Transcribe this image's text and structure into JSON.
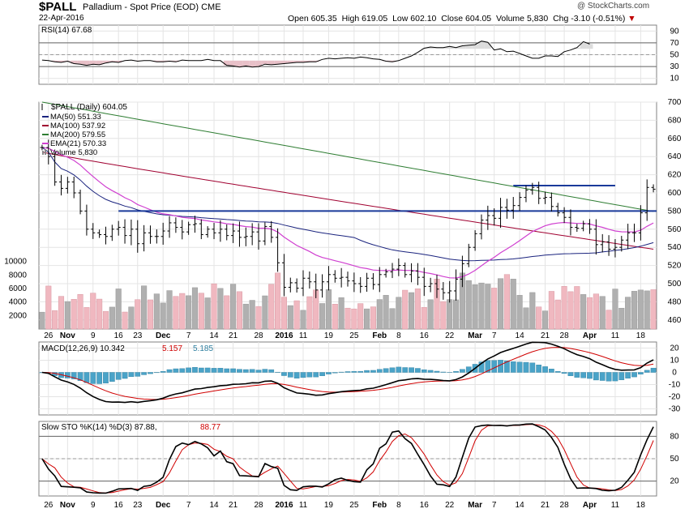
{
  "header": {
    "symbol": "$PALL",
    "name": "Palladium - Spot Price (EOD)",
    "exchange": "CME",
    "date": "22-Apr-2016",
    "watermark": "@ StockCharts.com",
    "open_label": "Open",
    "open": "605.35",
    "high_label": "High",
    "high": "619.05",
    "low_label": "Low",
    "low": "602.10",
    "close_label": "Close",
    "close": "604.05",
    "volume_label": "Volume",
    "volume": "5,830",
    "chg_label": "Chg",
    "chg": "-3.10 (-0.51%)",
    "chg_marker": "▼"
  },
  "colors": {
    "ma50": "#1a237e",
    "ma100": "#a00030",
    "ma200": "#2e7d32",
    "ema21": "#d040d0",
    "bar": "#000000",
    "vol_up": "#b0b0b0",
    "vol_down": "#f0b8c0",
    "macd_line": "#000000",
    "macd_signal": "#d00000",
    "macd_hist": "#4aa3c8",
    "sto_k": "#000000",
    "sto_d": "#d00000",
    "hline": "#1a3a9a"
  },
  "chart_data": [
    {
      "type": "line",
      "panel": "rsi",
      "title": "RSI(14)",
      "value_label": "67.68",
      "ylim": [
        0,
        100
      ],
      "yticks": [
        10,
        30,
        50,
        70,
        90
      ],
      "series": [
        {
          "name": "RSI(14)",
          "values": [
            41,
            40,
            38,
            37,
            39,
            35,
            34,
            32,
            34,
            33,
            36,
            38,
            37,
            40,
            41,
            39,
            40,
            40,
            38,
            38,
            39,
            38,
            41,
            40,
            40,
            40,
            42,
            40,
            40,
            32,
            31,
            29,
            31,
            29,
            30,
            34,
            33,
            34,
            35,
            36,
            37,
            37,
            38,
            38,
            42,
            44,
            43,
            44,
            45,
            44,
            46,
            45,
            43,
            42,
            39,
            38,
            40,
            44,
            48,
            54,
            61,
            63,
            62,
            62,
            64,
            62,
            65,
            66,
            67,
            73,
            71,
            58,
            60,
            55,
            56,
            52,
            48,
            44,
            44,
            48,
            48,
            47,
            55,
            58,
            62,
            72,
            68
          ]
        }
      ]
    },
    {
      "type": "ohlc",
      "panel": "price",
      "title": "$PALL (Daily)",
      "value_label": "604.05",
      "ylim": [
        450,
        700
      ],
      "yticks": [
        460,
        480,
        500,
        520,
        540,
        560,
        580,
        600,
        620,
        640,
        660,
        680,
        700
      ],
      "x_tick_labels": [
        "26",
        "Nov",
        "9",
        "16",
        "23",
        "Dec",
        "7",
        "14",
        "21",
        "28",
        "2016",
        "11",
        "19",
        "25",
        "Feb",
        "8",
        "16",
        "22",
        "Mar",
        "7",
        "14",
        "21",
        "28",
        "Apr",
        "11",
        "18"
      ],
      "close": [
        650,
        640,
        612,
        605,
        612,
        600,
        580,
        560,
        556,
        554,
        552,
        560,
        562,
        553,
        560,
        544,
        556,
        552,
        552,
        558,
        567,
        562,
        557,
        565,
        566,
        554,
        560,
        556,
        560,
        553,
        558,
        551,
        552,
        557,
        547,
        563,
        551,
        523,
        496,
        501,
        495,
        506,
        502,
        493,
        502,
        510,
        506,
        507,
        503,
        500,
        497,
        506,
        499,
        510,
        513,
        516,
        520,
        510,
        514,
        507,
        497,
        500,
        494,
        490,
        492,
        505,
        522,
        540,
        555,
        570,
        575,
        572,
        584,
        581,
        586,
        595,
        603,
        606,
        594,
        595,
        585,
        578,
        573,
        562,
        561,
        566,
        560,
        543,
        546,
        538,
        540,
        548,
        556,
        556,
        578,
        606,
        604.05
      ],
      "horizontal_levels": [
        580,
        608
      ],
      "series": [
        {
          "name": "MA(50)",
          "value_label": "551.33"
        },
        {
          "name": "MA(100)",
          "value_label": "537.92"
        },
        {
          "name": "MA(200)",
          "value_label": "579.55"
        },
        {
          "name": "EMA(21)",
          "value_label": "570.33"
        }
      ],
      "volume": {
        "name": "Volume",
        "value_label": "5,830",
        "ylim": [
          0,
          12000
        ],
        "yticks": [
          2000,
          4000,
          6000,
          8000,
          10000
        ]
      }
    },
    {
      "type": "line",
      "panel": "macd",
      "title": "MACD(12,26,9)",
      "value_label": "10.342",
      "signal_label": "5.157",
      "hist_label": "5.185",
      "ylim": [
        -35,
        25
      ],
      "yticks": [
        -30,
        -20,
        -10,
        0,
        10,
        20
      ]
    },
    {
      "type": "line",
      "panel": "sto",
      "title": "Slow STO %K(14) %D(3)",
      "k_label": "87.88",
      "d_label": "88.77",
      "ylim": [
        0,
        100
      ],
      "yticks": [
        20,
        50,
        80
      ]
    }
  ]
}
